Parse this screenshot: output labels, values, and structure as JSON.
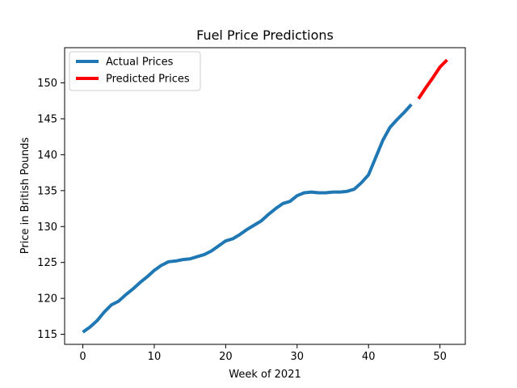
{
  "chart_data": {
    "type": "line",
    "title": "Fuel Price Predictions",
    "xlabel": "Week of 2021",
    "ylabel": "Price in British Pounds",
    "xlim": [
      -2.55,
      53.55
    ],
    "ylim": [
      113.6,
      154.9
    ],
    "xticks": [
      0,
      10,
      20,
      30,
      40,
      50
    ],
    "yticks": [
      115,
      120,
      125,
      130,
      135,
      140,
      145,
      150
    ],
    "grid": false,
    "legend": "top-left",
    "series": [
      {
        "name": "Actual Prices",
        "color": "#1f77b4",
        "x": [
          0,
          1,
          2,
          3,
          4,
          5,
          6,
          7,
          8,
          9,
          10,
          11,
          12,
          13,
          14,
          15,
          16,
          17,
          18,
          19,
          20,
          21,
          22,
          23,
          24,
          25,
          26,
          27,
          28,
          29,
          30,
          31,
          32,
          33,
          34,
          35,
          36,
          37,
          38,
          39,
          40,
          41,
          42,
          43,
          44,
          45,
          46
        ],
        "y": [
          115.3,
          116.0,
          116.9,
          118.1,
          119.1,
          119.6,
          120.5,
          121.3,
          122.2,
          123.0,
          123.9,
          124.6,
          125.1,
          125.2,
          125.4,
          125.5,
          125.8,
          126.1,
          126.6,
          127.3,
          128.0,
          128.3,
          128.9,
          129.6,
          130.2,
          130.8,
          131.7,
          132.5,
          133.2,
          133.5,
          134.3,
          134.7,
          134.8,
          134.7,
          134.7,
          134.8,
          134.8,
          134.9,
          135.2,
          136.1,
          137.2,
          139.6,
          142.0,
          143.8,
          144.9,
          145.9,
          147.0
        ]
      },
      {
        "name": "Predicted Prices",
        "color": "#ff0000",
        "x": [
          47,
          48,
          49,
          50,
          51
        ],
        "y": [
          147.8,
          149.3,
          150.7,
          152.2,
          153.2
        ]
      }
    ]
  }
}
